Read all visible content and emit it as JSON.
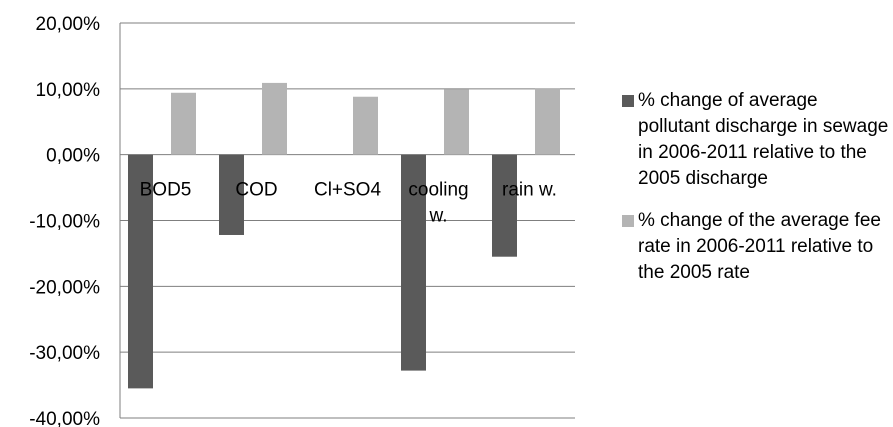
{
  "chart_data": {
    "type": "bar",
    "categories": [
      "BOD5",
      "COD",
      "Cl+SO4",
      "cooling w.",
      "rain w."
    ],
    "series": [
      {
        "name": "% change of average pollutant discharge in sewage in 2006-2011 relative to the 2005 discharge",
        "values": [
          -35.5,
          -12.2,
          0.0,
          -32.8,
          -15.5
        ],
        "color": "#5a5a5a"
      },
      {
        "name": "% change of the average fee rate in 2006-2011 relative to the 2005 rate",
        "values": [
          9.4,
          10.9,
          8.8,
          9.9,
          10.1
        ],
        "color": "#b4b4b4"
      }
    ],
    "ylim": [
      -40,
      20
    ],
    "ytick_values": [
      20,
      10,
      0,
      -10,
      -20,
      -30,
      -40
    ],
    "ytick_labels": [
      "20,00%",
      "10,00%",
      "0,00%",
      "-10,00%",
      "-20,00%",
      "-30,00%",
      "-40,00%"
    ],
    "title": "",
    "xlabel": "",
    "ylabel": "",
    "grid": true,
    "legend_position": "right"
  }
}
